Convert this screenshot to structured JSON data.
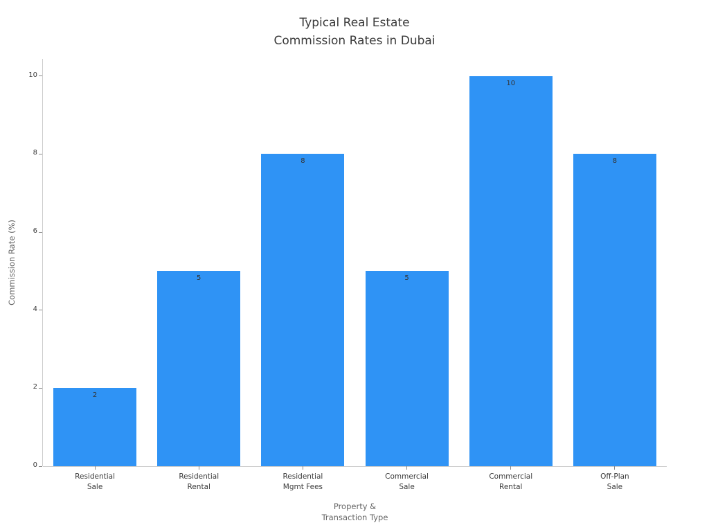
{
  "chart_data": {
    "type": "bar",
    "title": "Typical Real Estate\nCommission Rates in Dubai",
    "xlabel": "Property &\nTransaction Type",
    "ylabel": "Commission Rate (%)",
    "categories": [
      "Residential\nSale",
      "Residential\nRental",
      "Residential\nMgmt Fees",
      "Commercial\nSale",
      "Commercial\nRental",
      "Off-Plan\nSale"
    ],
    "values": [
      2,
      5,
      8,
      5,
      10,
      8
    ],
    "bar_labels": [
      "2",
      "5",
      "8",
      "5",
      "10",
      "8"
    ],
    "yticks": [
      0,
      2,
      4,
      6,
      8,
      10
    ],
    "ylim": [
      0,
      10.44
    ],
    "grid": false,
    "legend_position": "none",
    "bar_width_ratio": 0.8
  },
  "colors": {
    "bar": "#2F93F5",
    "title_text": "#3A3A3A",
    "tick_text": "#3A3A3A",
    "value_label_text": "#333333",
    "axis_label_text": "#666666",
    "spine": "#CDCDCD",
    "tick_mark": "#8A8A8A",
    "background": "#FFFFFF"
  }
}
